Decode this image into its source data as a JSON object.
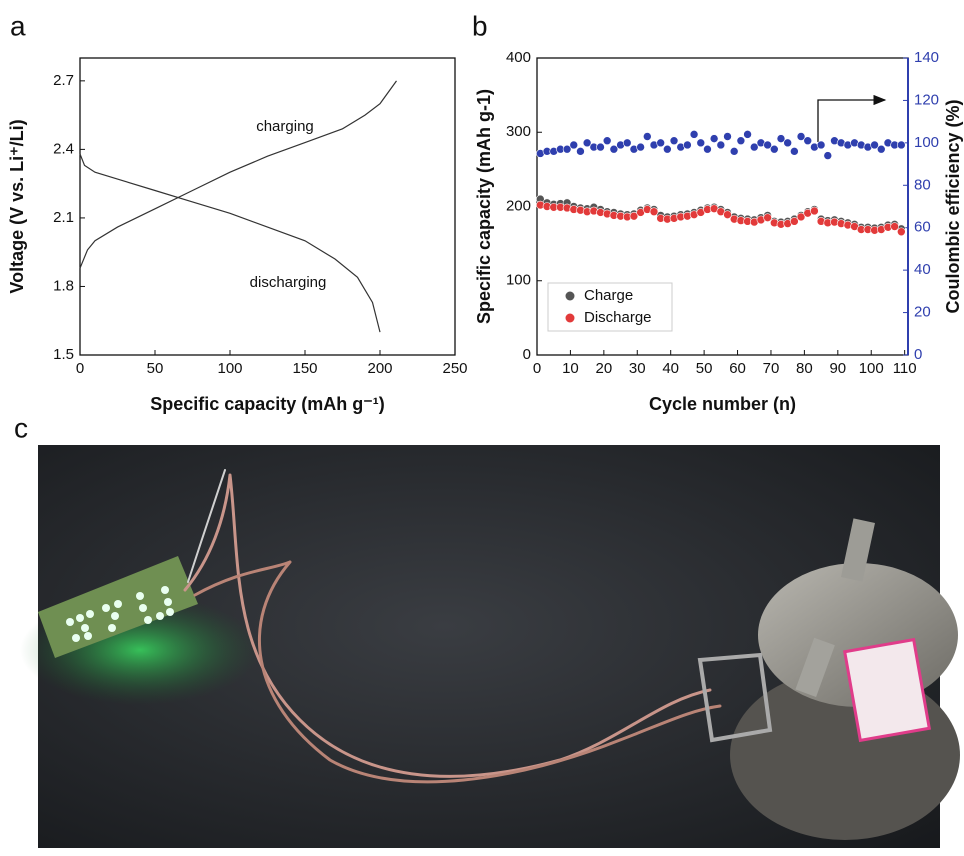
{
  "chart_data": [
    {
      "type": "line",
      "panel": "a",
      "xlabel": "Specific capacity (mAh g⁻¹)",
      "ylabel": "Voltage (V vs. Li⁺/Li)",
      "xlim": [
        0,
        250
      ],
      "xticks": [
        0,
        50,
        100,
        150,
        200,
        250
      ],
      "ylim": [
        1.5,
        2.8
      ],
      "yticks": [
        1.5,
        1.8,
        2.1,
        2.4,
        2.7
      ],
      "series": [
        {
          "name": "charging",
          "color": "#333333",
          "x": [
            0,
            5,
            10,
            25,
            50,
            75,
            100,
            125,
            150,
            175,
            190,
            200,
            211
          ],
          "values": [
            1.88,
            1.96,
            2.0,
            2.06,
            2.14,
            2.22,
            2.3,
            2.37,
            2.43,
            2.49,
            2.55,
            2.6,
            2.7
          ]
        },
        {
          "name": "discharging",
          "color": "#333333",
          "x": [
            0,
            3,
            10,
            25,
            50,
            75,
            100,
            125,
            150,
            170,
            185,
            195,
            200
          ],
          "values": [
            2.38,
            2.33,
            2.3,
            2.27,
            2.22,
            2.17,
            2.12,
            2.06,
            2.0,
            1.92,
            1.84,
            1.73,
            1.6
          ]
        }
      ]
    },
    {
      "type": "scatter",
      "panel": "b",
      "xlabel": "Cycle number (n)",
      "ylabel": "Specific capacity (mAh g-1)",
      "y2label": "Coulombic efficiency (%)",
      "xlim": [
        0,
        111
      ],
      "xticks": [
        0,
        10,
        20,
        30,
        40,
        50,
        60,
        70,
        80,
        90,
        100,
        110
      ],
      "ylim": [
        0,
        400
      ],
      "yticks": [
        0,
        100,
        200,
        300,
        400
      ],
      "y2lim": [
        0,
        140
      ],
      "y2ticks": [
        0,
        20,
        40,
        60,
        80,
        100,
        120,
        140
      ],
      "x": [
        1,
        3,
        5,
        7,
        9,
        11,
        13,
        15,
        17,
        19,
        21,
        23,
        25,
        27,
        29,
        31,
        33,
        35,
        37,
        39,
        41,
        43,
        45,
        47,
        49,
        51,
        53,
        55,
        57,
        59,
        61,
        63,
        65,
        67,
        69,
        71,
        73,
        75,
        77,
        79,
        81,
        83,
        85,
        87,
        89,
        91,
        93,
        95,
        97,
        99,
        101,
        103,
        105,
        107,
        109
      ],
      "series": [
        {
          "name": "Charge",
          "color": "#555555",
          "values": [
            210,
            205,
            203,
            204,
            205,
            200,
            198,
            197,
            199,
            196,
            193,
            192,
            190,
            189,
            190,
            195,
            198,
            196,
            188,
            186,
            187,
            189,
            190,
            192,
            195,
            198,
            199,
            196,
            192,
            186,
            184,
            183,
            182,
            185,
            188,
            180,
            179,
            180,
            183,
            188,
            193,
            196,
            183,
            181,
            182,
            180,
            178,
            176,
            172,
            172,
            171,
            172,
            175,
            176,
            170
          ]
        },
        {
          "name": "Discharge",
          "color": "#e23a3a",
          "values": [
            202,
            200,
            199,
            199,
            198,
            196,
            195,
            193,
            194,
            192,
            190,
            188,
            187,
            186,
            187,
            192,
            196,
            193,
            184,
            183,
            184,
            186,
            187,
            189,
            192,
            196,
            197,
            193,
            189,
            183,
            181,
            180,
            179,
            182,
            185,
            178,
            176,
            177,
            180,
            186,
            191,
            194,
            180,
            178,
            179,
            177,
            175,
            173,
            169,
            169,
            168,
            169,
            172,
            173,
            166
          ]
        },
        {
          "axis": "y2",
          "color": "#2f3fae",
          "values": [
            95,
            96,
            96,
            97,
            97,
            99,
            96,
            100,
            98,
            98,
            101,
            97,
            99,
            100,
            97,
            98,
            103,
            99,
            100,
            97,
            101,
            98,
            99,
            104,
            100,
            97,
            102,
            99,
            103,
            96,
            101,
            104,
            98,
            100,
            99,
            97,
            102,
            100,
            96,
            103,
            101,
            98,
            99,
            94,
            101,
            100,
            99,
            100,
            99,
            98,
            99,
            97,
            100,
            99,
            99
          ]
        }
      ]
    }
  ],
  "photo": {
    "panel": "c"
  }
}
